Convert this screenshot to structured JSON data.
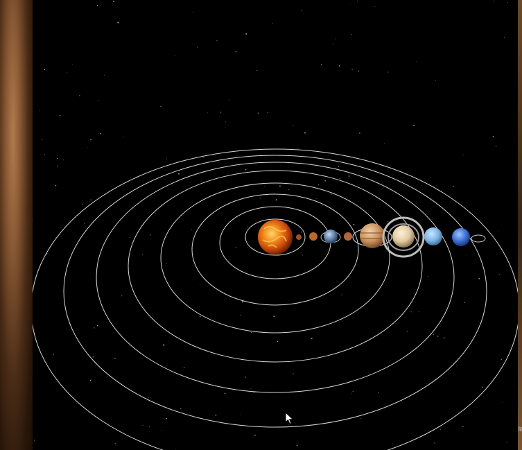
{
  "scene": {
    "title": "",
    "background_color": "#000000",
    "orbit_color": "#d9d9d9",
    "orbits": [
      "mercury",
      "venus",
      "earth",
      "mars",
      "jupiter",
      "saturn",
      "uranus",
      "neptune"
    ],
    "bodies": [
      {
        "name": "sun",
        "icon": "sun-icon",
        "color": "#d96a12"
      },
      {
        "name": "mercury",
        "icon": "mercury-icon",
        "color": "#a0522d"
      },
      {
        "name": "venus",
        "icon": "venus-icon",
        "color": "#b8692e"
      },
      {
        "name": "earth",
        "icon": "earth-icon",
        "color": "#5f7fa8"
      },
      {
        "name": "mars",
        "icon": "mars-icon",
        "color": "#b5653a"
      },
      {
        "name": "jupiter",
        "icon": "jupiter-icon",
        "color": "#c99a6b"
      },
      {
        "name": "saturn",
        "icon": "saturn-icon",
        "color": "#e0c9a0"
      },
      {
        "name": "uranus",
        "icon": "uranus-icon",
        "color": "#7fb6e6"
      },
      {
        "name": "neptune",
        "icon": "neptune-icon",
        "color": "#3b6fd1"
      }
    ]
  },
  "right_edge_glyphs": "尼"
}
